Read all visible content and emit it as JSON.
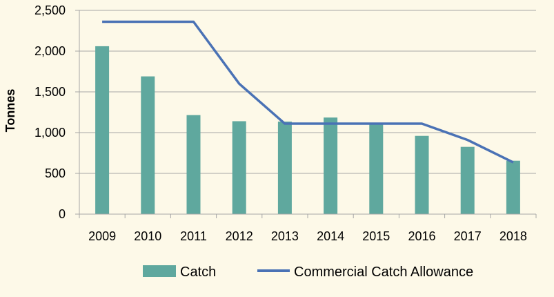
{
  "chart_data": {
    "type": "bar",
    "categories": [
      "2009",
      "2010",
      "2011",
      "2012",
      "2013",
      "2014",
      "2015",
      "2016",
      "2017",
      "2018"
    ],
    "series": [
      {
        "name": "Catch",
        "type": "bar",
        "color": "#5fa89e",
        "values": [
          2060,
          1690,
          1215,
          1140,
          1135,
          1185,
          1105,
          960,
          825,
          655
        ]
      },
      {
        "name": "Commercial Catch Allowance",
        "type": "line",
        "color": "#4a72b5",
        "values": [
          2360,
          2360,
          2360,
          1600,
          1110,
          1110,
          1110,
          1110,
          910,
          635
        ]
      }
    ],
    "title": "",
    "xlabel": "",
    "ylabel": "Tonnes",
    "ylim": [
      0,
      2500
    ],
    "yticks": [
      0,
      500,
      1000,
      1500,
      2000,
      2500
    ],
    "ytick_labels": [
      "0",
      "500",
      "1,000",
      "1,500",
      "2,000",
      "2,500"
    ],
    "grid": "horizontal",
    "legend_position": "bottom"
  }
}
